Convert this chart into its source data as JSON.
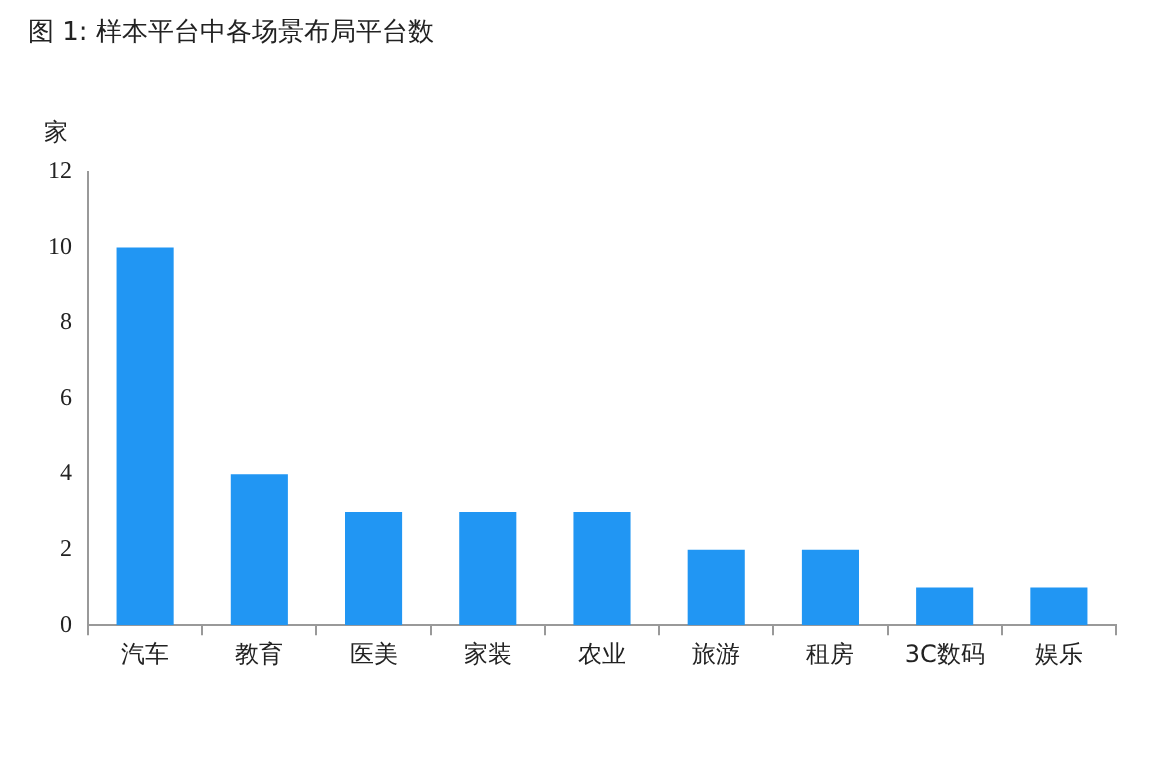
{
  "chart_data": {
    "type": "bar",
    "title": "图 1: 样本平台中各场景布局平台数",
    "ylabel": "家",
    "categories": [
      "汽车",
      "教育",
      "医美",
      "家装",
      "农业",
      "旅游",
      "租房",
      "3C数码",
      "娱乐"
    ],
    "values": [
      10,
      4,
      3,
      3,
      3,
      2,
      2,
      1,
      1
    ],
    "color": "#2196f3",
    "ylim": [
      0,
      12
    ],
    "yticks": [
      0,
      2,
      4,
      6,
      8,
      10,
      12
    ],
    "grid": false,
    "legend": false
  }
}
